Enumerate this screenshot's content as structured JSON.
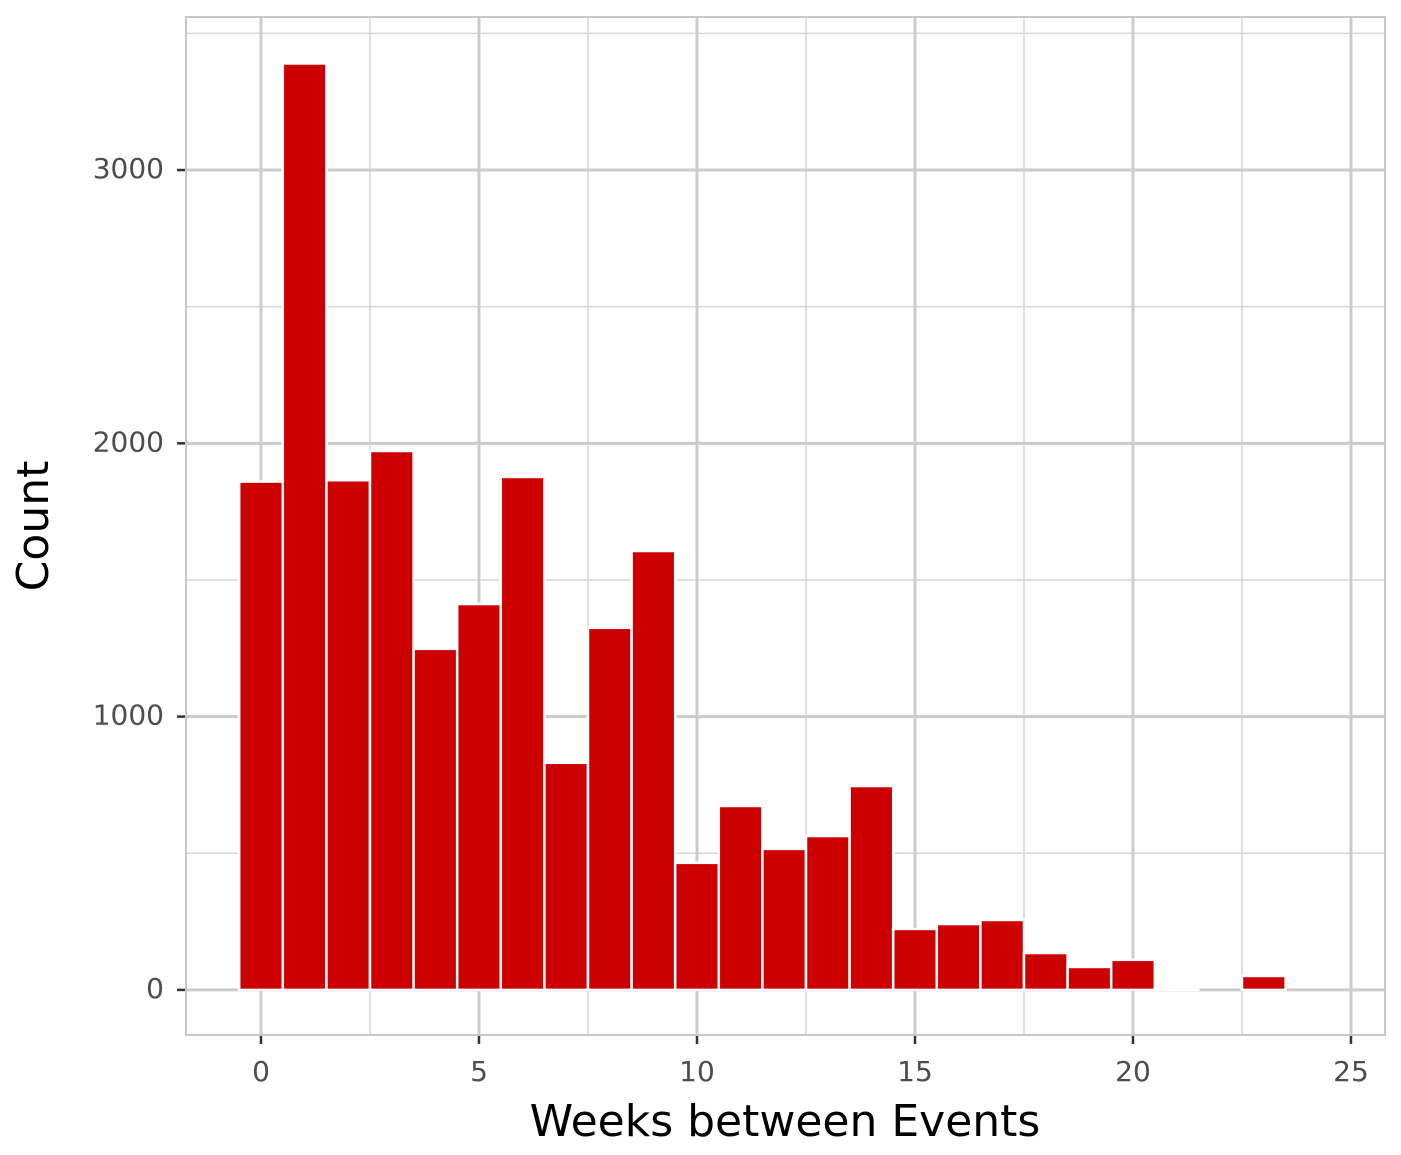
{
  "chart_data": {
    "type": "histogram",
    "xlabel": "Weeks between Events",
    "ylabel": "Count",
    "bins": [
      -0.5,
      0.5,
      1.5,
      2.5,
      3.5,
      4.5,
      5.5,
      6.5,
      7.5,
      8.5,
      9.5,
      10.5,
      11.5,
      12.5,
      13.5,
      14.5,
      15.5,
      16.5,
      17.5,
      18.5,
      19.5,
      20.5,
      21.5,
      22.5,
      23.5,
      24.5
    ],
    "values": [
      1860,
      3390,
      1865,
      1972,
      1248,
      1412,
      1877,
      831,
      1325,
      1606,
      465,
      673,
      516,
      563,
      746,
      223,
      241,
      256,
      135,
      84,
      110,
      7,
      0,
      51,
      0
    ],
    "color": "#cc0000",
    "xlim": [
      -1.72,
      25.78
    ],
    "ylim": [
      -165,
      3560
    ],
    "xticks": [
      0,
      5,
      10,
      15,
      20,
      25
    ],
    "yticks": [
      0,
      1000,
      2000,
      3000
    ],
    "grid": true
  }
}
